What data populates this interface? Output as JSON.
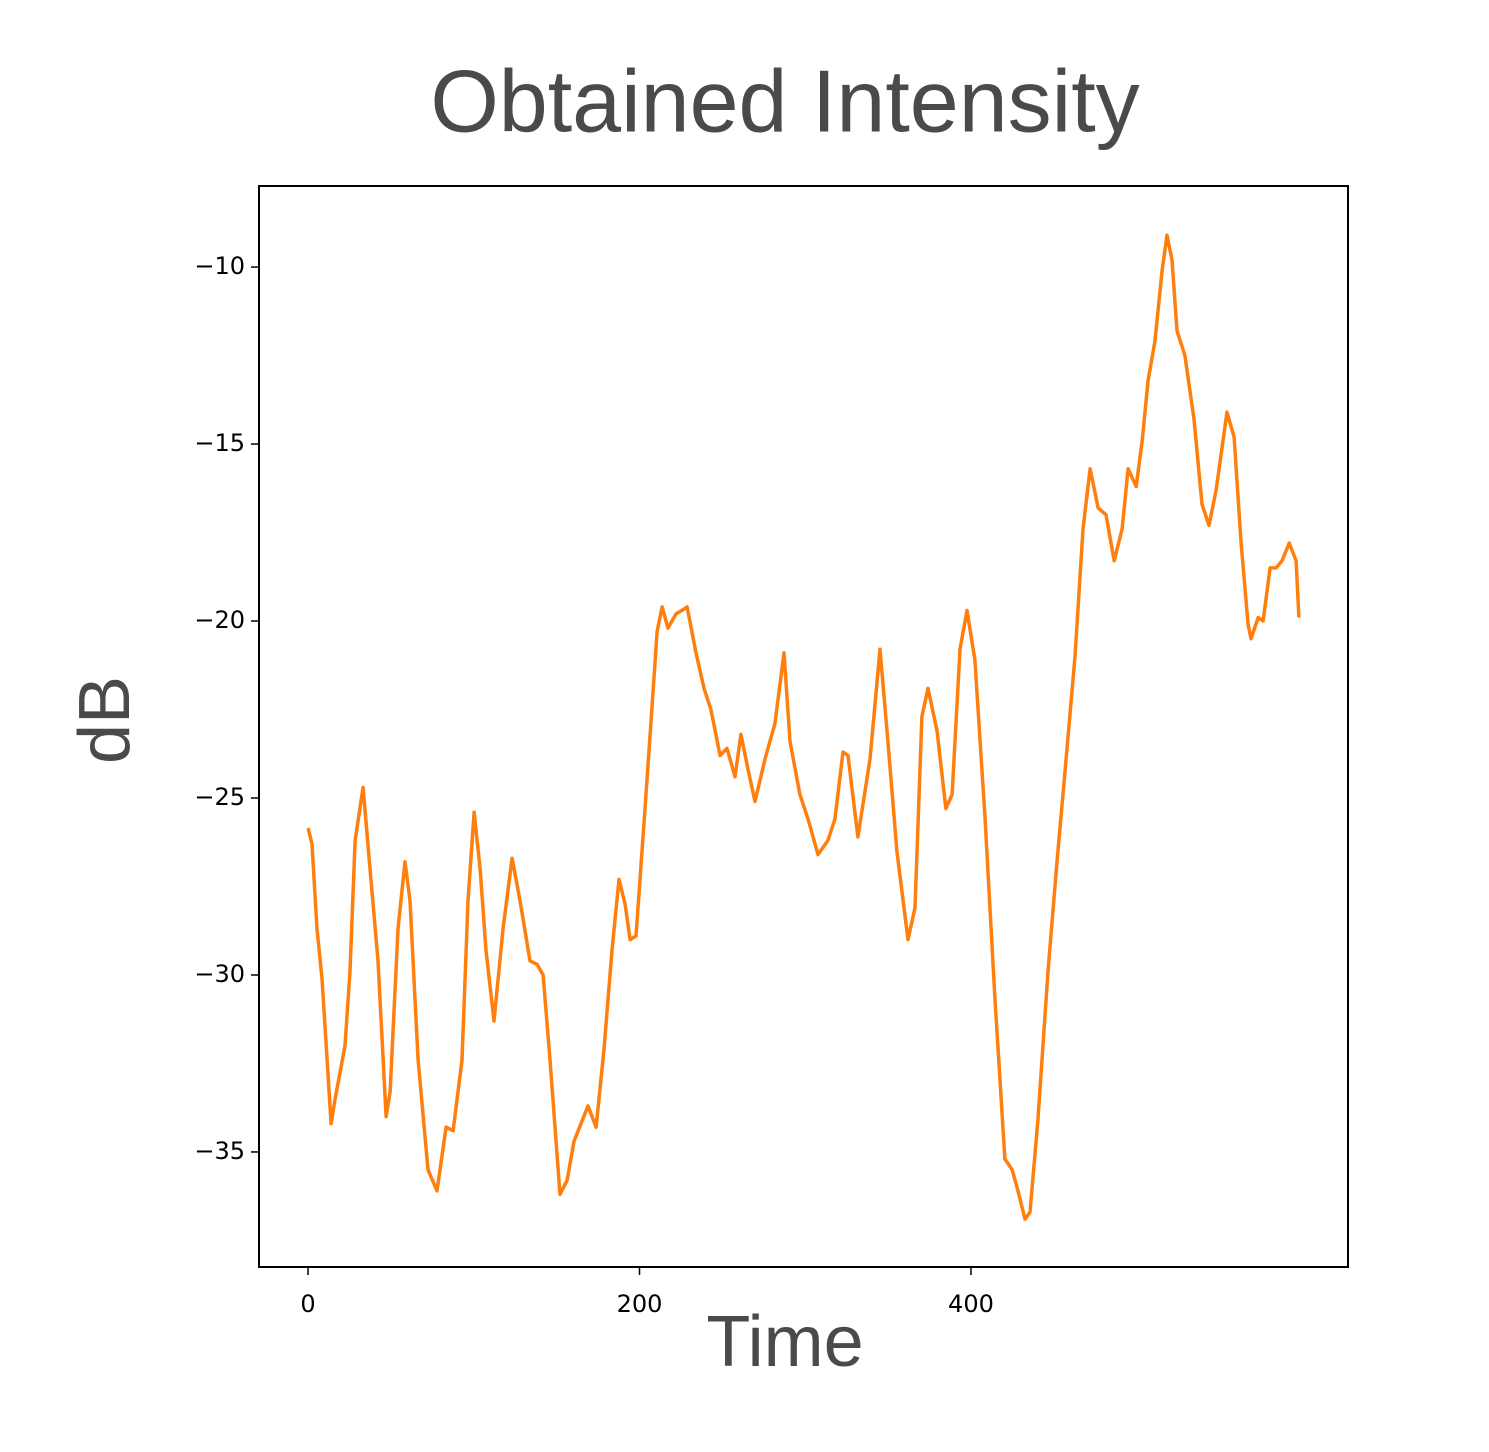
{
  "chart_data": {
    "type": "line",
    "title": "Obtained Intensity",
    "x_label": "Time",
    "y_label": "dB",
    "color": "#ff7f0e",
    "x": [
      0,
      2.4,
      5.4,
      8.4,
      13.9,
      16.3,
      22.3,
      25.3,
      28.4,
      33.2,
      37.4,
      42.2,
      47.1,
      49.5,
      54.3,
      58.5,
      61.5,
      66.4,
      72.4,
      77.8,
      83.3,
      87.5,
      92.9,
      96.5,
      100.2,
      103.8,
      107.4,
      112.2,
      117.6,
      123.1,
      127.9,
      133.9,
      138.2,
      141.8,
      146,
      152,
      156.3,
      160.5,
      168.9,
      173.8,
      178.6,
      183.4,
      187.6,
      191.3,
      194.3,
      197.9,
      203.3,
      207,
      210.6,
      213.6,
      217.2,
      222,
      225.6,
      228.7,
      234.1,
      238.9,
      243.1,
      248.6,
      252.8,
      257.6,
      261.2,
      265.5,
      269.7,
      275.7,
      281.7,
      287.2,
      290.8,
      296.8,
      301.7,
      307.7,
      313.7,
      317.9,
      322.8,
      325.8,
      331.8,
      339.1,
      345.1,
      349.9,
      355.3,
      362,
      366.2,
      370.4,
      374.1,
      379.5,
      384.9,
      388.6,
      393.4,
      397.6,
      402.4,
      408.5,
      414.5,
      420.5,
      424.8,
      428.4,
      432.6,
      435.6,
      440.4,
      446.5,
      451.9,
      457.4,
      462.8,
      467.6,
      471.9,
      476.7,
      481.5,
      486.4,
      491.2,
      494.8,
      499.7,
      503.3,
      506.9,
      511,
      515.3,
      518.3,
      521.3,
      524.3,
      529.1,
      534.6,
      539.4,
      543.6,
      547.9,
      554.5,
      558.8,
      563,
      567.2,
      569,
      573.3,
      576.3,
      580.5,
      584.1,
      587.7,
      592,
      596.2,
      597.9
    ],
    "values": [
      -25.85,
      -26.3,
      -28.7,
      -30.1,
      -34.2,
      -33.5,
      -32.0,
      -29.9,
      -26.2,
      -24.7,
      -27.0,
      -29.6,
      -34.0,
      -33.3,
      -28.7,
      -26.8,
      -27.9,
      -32.4,
      -35.5,
      -36.1,
      -34.3,
      -34.4,
      -32.4,
      -27.9,
      -25.4,
      -27.0,
      -29.3,
      -31.3,
      -28.7,
      -26.7,
      -27.9,
      -29.6,
      -29.7,
      -30.0,
      -32.4,
      -36.2,
      -35.8,
      -34.7,
      -33.7,
      -34.3,
      -32.1,
      -29.3,
      -27.3,
      -28.0,
      -29.0,
      -28.9,
      -25.3,
      -22.8,
      -20.3,
      -19.6,
      -20.2,
      -19.8,
      -19.7,
      -19.6,
      -20.9,
      -21.9,
      -22.5,
      -23.8,
      -23.6,
      -24.4,
      -23.2,
      -24.2,
      -25.1,
      -23.9,
      -22.9,
      -20.9,
      -23.4,
      -24.9,
      -25.6,
      -26.6,
      -26.2,
      -25.6,
      -23.7,
      -23.8,
      -26.1,
      -23.9,
      -20.8,
      -23.4,
      -26.5,
      -29.0,
      -28.1,
      -22.7,
      -21.9,
      -23.1,
      -25.3,
      -24.9,
      -20.8,
      -19.7,
      -21.1,
      -25.6,
      -30.7,
      -35.2,
      -35.5,
      -36.1,
      -36.9,
      -36.7,
      -34.1,
      -29.9,
      -26.8,
      -23.9,
      -21.0,
      -17.4,
      -15.7,
      -16.8,
      -17.0,
      -18.3,
      -17.4,
      -15.7,
      -16.2,
      -14.9,
      -13.2,
      -12.1,
      -10.1,
      -9.1,
      -9.8,
      -11.8,
      -12.5,
      -14.3,
      -16.7,
      -17.3,
      -16.3,
      -14.1,
      -14.8,
      -17.8,
      -20.1,
      -20.5,
      -19.9,
      -20.0,
      -18.5,
      -18.5,
      -18.3,
      -17.8,
      -18.3,
      -19.9
    ],
    "xlim": [
      -29.6,
      627.5
    ],
    "ylim": [
      -38.25,
      -7.71
    ],
    "xticks": [
      0,
      200,
      400
    ],
    "yticks": [
      {
        "value": -35,
        "label": "−35"
      },
      {
        "value": -30,
        "label": "−30"
      },
      {
        "value": -25,
        "label": "−25"
      },
      {
        "value": -20,
        "label": "−20"
      },
      {
        "value": -15,
        "label": "−15"
      },
      {
        "value": -10,
        "label": "−10"
      }
    ]
  }
}
